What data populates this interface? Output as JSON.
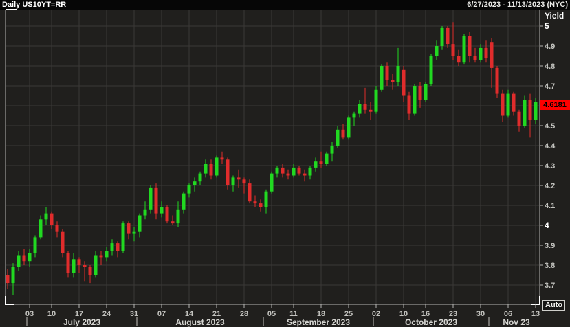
{
  "title_bar": {
    "title": "Daily US10YT=RR",
    "date_range": "6/27/2023 - 11/13/2023 (NYC)"
  },
  "y_axis": {
    "label": "Yield",
    "ticks": [
      "5",
      "4.9",
      "4.8",
      "4.7",
      "4.6",
      "4.5",
      "4.4",
      "4.3",
      "4.2",
      "4.1",
      "4",
      "3.9",
      "3.8",
      "3.7"
    ],
    "bold_ticks": [
      "5",
      "4"
    ],
    "current_price_label": "4.6181"
  },
  "x_axis": {
    "week_ticks": [
      {
        "label": "03",
        "i": 4
      },
      {
        "label": "10",
        "i": 8
      },
      {
        "label": "17",
        "i": 13
      },
      {
        "label": "24",
        "i": 18
      },
      {
        "label": "31",
        "i": 23
      },
      {
        "label": "07",
        "i": 28
      },
      {
        "label": "14",
        "i": 33
      },
      {
        "label": "21",
        "i": 38
      },
      {
        "label": "28",
        "i": 43
      },
      {
        "label": "05",
        "i": 48
      },
      {
        "label": "11",
        "i": 52
      },
      {
        "label": "18",
        "i": 57
      },
      {
        "label": "25",
        "i": 62
      },
      {
        "label": "02",
        "i": 67
      },
      {
        "label": "10",
        "i": 72
      },
      {
        "label": "16",
        "i": 76
      },
      {
        "label": "23",
        "i": 81
      },
      {
        "label": "30",
        "i": 86
      },
      {
        "label": "06",
        "i": 91
      },
      {
        "label": "13",
        "i": 96
      }
    ],
    "month_labels": [
      {
        "label": "July 2023",
        "i": 13.5
      },
      {
        "label": "August 2023",
        "i": 35
      },
      {
        "label": "September 2023",
        "i": 56.5
      },
      {
        "label": "October 2023",
        "i": 77
      },
      {
        "label": "Nov 23",
        "i": 92.5
      }
    ],
    "month_separators": [
      3.5,
      23.5,
      46.5,
      66.5,
      87.5
    ]
  },
  "auto_button": "Auto",
  "colors": {
    "background": "#201f1d",
    "titlebar_bg": "#060606",
    "grid": "#3a3936",
    "axis_frame": "#b6b6b2",
    "corner_accent": "#ffffff",
    "tick_text": "#c3c3bf",
    "bold_tick_text": "#ffffff",
    "month_text": "#d6d6d2",
    "candle_up": "#21d921",
    "candle_down": "#e02c2c",
    "price_label_bg": "#fe0000",
    "price_label_text": "#000000"
  },
  "chart_data": {
    "type": "candlestick",
    "title": "Daily US10YT=RR",
    "ylabel": "Yield",
    "ylim": [
      3.6,
      5.09
    ],
    "grid": true,
    "last_price": 4.6181,
    "dates": [
      "2023-06-27",
      "2023-06-28",
      "2023-06-29",
      "2023-06-30",
      "2023-07-03",
      "2023-07-05",
      "2023-07-06",
      "2023-07-07",
      "2023-07-10",
      "2023-07-11",
      "2023-07-12",
      "2023-07-13",
      "2023-07-14",
      "2023-07-17",
      "2023-07-18",
      "2023-07-19",
      "2023-07-20",
      "2023-07-21",
      "2023-07-24",
      "2023-07-25",
      "2023-07-26",
      "2023-07-27",
      "2023-07-28",
      "2023-07-31",
      "2023-08-01",
      "2023-08-02",
      "2023-08-03",
      "2023-08-04",
      "2023-08-07",
      "2023-08-08",
      "2023-08-09",
      "2023-08-10",
      "2023-08-11",
      "2023-08-14",
      "2023-08-15",
      "2023-08-16",
      "2023-08-17",
      "2023-08-18",
      "2023-08-21",
      "2023-08-22",
      "2023-08-23",
      "2023-08-24",
      "2023-08-25",
      "2023-08-28",
      "2023-08-29",
      "2023-08-30",
      "2023-08-31",
      "2023-09-01",
      "2023-09-05",
      "2023-09-06",
      "2023-09-07",
      "2023-09-08",
      "2023-09-11",
      "2023-09-12",
      "2023-09-13",
      "2023-09-14",
      "2023-09-15",
      "2023-09-18",
      "2023-09-19",
      "2023-09-20",
      "2023-09-21",
      "2023-09-22",
      "2023-09-25",
      "2023-09-26",
      "2023-09-27",
      "2023-09-28",
      "2023-09-29",
      "2023-10-02",
      "2023-10-03",
      "2023-10-04",
      "2023-10-05",
      "2023-10-06",
      "2023-10-10",
      "2023-10-11",
      "2023-10-12",
      "2023-10-13",
      "2023-10-16",
      "2023-10-17",
      "2023-10-18",
      "2023-10-19",
      "2023-10-20",
      "2023-10-23",
      "2023-10-24",
      "2023-10-25",
      "2023-10-26",
      "2023-10-27",
      "2023-10-30",
      "2023-10-31",
      "2023-11-01",
      "2023-11-02",
      "2023-11-03",
      "2023-11-06",
      "2023-11-07",
      "2023-11-08",
      "2023-11-09",
      "2023-11-10",
      "2023-11-13"
    ],
    "ohlc": [
      [
        3.75,
        3.78,
        3.68,
        3.71
      ],
      [
        3.71,
        3.81,
        3.65,
        3.79
      ],
      [
        3.79,
        3.87,
        3.77,
        3.85
      ],
      [
        3.85,
        3.88,
        3.8,
        3.82
      ],
      [
        3.82,
        3.88,
        3.79,
        3.86
      ],
      [
        3.86,
        3.95,
        3.84,
        3.94
      ],
      [
        3.94,
        4.05,
        3.93,
        4.03
      ],
      [
        4.03,
        4.09,
        4.0,
        4.06
      ],
      [
        4.06,
        4.07,
        3.98,
        4.0
      ],
      [
        4.0,
        4.02,
        3.94,
        3.97
      ],
      [
        3.97,
        3.98,
        3.84,
        3.86
      ],
      [
        3.86,
        3.87,
        3.74,
        3.76
      ],
      [
        3.76,
        3.86,
        3.74,
        3.83
      ],
      [
        3.83,
        3.84,
        3.76,
        3.8
      ],
      [
        3.8,
        3.82,
        3.72,
        3.79
      ],
      [
        3.79,
        3.8,
        3.71,
        3.75
      ],
      [
        3.75,
        3.87,
        3.74,
        3.85
      ],
      [
        3.85,
        3.87,
        3.8,
        3.84
      ],
      [
        3.84,
        3.89,
        3.82,
        3.87
      ],
      [
        3.87,
        3.93,
        3.85,
        3.91
      ],
      [
        3.91,
        3.92,
        3.84,
        3.87
      ],
      [
        3.87,
        4.02,
        3.86,
        4.01
      ],
      [
        4.01,
        4.02,
        3.93,
        3.96
      ],
      [
        3.96,
        3.99,
        3.92,
        3.97
      ],
      [
        3.97,
        4.06,
        3.94,
        4.05
      ],
      [
        4.05,
        4.12,
        4.03,
        4.08
      ],
      [
        4.08,
        4.2,
        4.06,
        4.19
      ],
      [
        4.19,
        4.21,
        4.03,
        4.06
      ],
      [
        4.06,
        4.12,
        4.04,
        4.09
      ],
      [
        4.09,
        4.1,
        4.01,
        4.02
      ],
      [
        4.02,
        4.05,
        4.0,
        4.01
      ],
      [
        4.01,
        4.12,
        3.99,
        4.08
      ],
      [
        4.08,
        4.17,
        4.06,
        4.16
      ],
      [
        4.16,
        4.21,
        4.14,
        4.2
      ],
      [
        4.2,
        4.24,
        4.17,
        4.22
      ],
      [
        4.22,
        4.27,
        4.2,
        4.26
      ],
      [
        4.26,
        4.33,
        4.24,
        4.31
      ],
      [
        4.31,
        4.33,
        4.23,
        4.25
      ],
      [
        4.25,
        4.35,
        4.24,
        4.34
      ],
      [
        4.34,
        4.37,
        4.31,
        4.33
      ],
      [
        4.33,
        4.34,
        4.18,
        4.2
      ],
      [
        4.2,
        4.25,
        4.17,
        4.24
      ],
      [
        4.24,
        4.28,
        4.19,
        4.23
      ],
      [
        4.23,
        4.24,
        4.16,
        4.21
      ],
      [
        4.21,
        4.23,
        4.11,
        4.12
      ],
      [
        4.12,
        4.15,
        4.09,
        4.11
      ],
      [
        4.11,
        4.13,
        4.07,
        4.09
      ],
      [
        4.09,
        4.18,
        4.06,
        4.17
      ],
      [
        4.17,
        4.27,
        4.16,
        4.26
      ],
      [
        4.26,
        4.3,
        4.24,
        4.29
      ],
      [
        4.29,
        4.31,
        4.24,
        4.26
      ],
      [
        4.26,
        4.28,
        4.23,
        4.25
      ],
      [
        4.25,
        4.31,
        4.24,
        4.29
      ],
      [
        4.29,
        4.3,
        4.25,
        4.26
      ],
      [
        4.26,
        4.28,
        4.22,
        4.25
      ],
      [
        4.25,
        4.3,
        4.23,
        4.29
      ],
      [
        4.29,
        4.34,
        4.27,
        4.32
      ],
      [
        4.32,
        4.37,
        4.29,
        4.31
      ],
      [
        4.31,
        4.37,
        4.3,
        4.36
      ],
      [
        4.36,
        4.42,
        4.32,
        4.4
      ],
      [
        4.4,
        4.5,
        4.39,
        4.48
      ],
      [
        4.48,
        4.51,
        4.43,
        4.44
      ],
      [
        4.44,
        4.55,
        4.43,
        4.54
      ],
      [
        4.54,
        4.57,
        4.5,
        4.56
      ],
      [
        4.56,
        4.63,
        4.54,
        4.61
      ],
      [
        4.61,
        4.69,
        4.56,
        4.58
      ],
      [
        4.58,
        4.62,
        4.53,
        4.57
      ],
      [
        4.57,
        4.7,
        4.56,
        4.68
      ],
      [
        4.68,
        4.81,
        4.67,
        4.8
      ],
      [
        4.8,
        4.82,
        4.7,
        4.73
      ],
      [
        4.73,
        4.76,
        4.68,
        4.72
      ],
      [
        4.72,
        4.89,
        4.7,
        4.8
      ],
      [
        4.78,
        4.8,
        4.62,
        4.65
      ],
      [
        4.65,
        4.67,
        4.53,
        4.56
      ],
      [
        4.56,
        4.71,
        4.55,
        4.7
      ],
      [
        4.7,
        4.72,
        4.59,
        4.63
      ],
      [
        4.63,
        4.72,
        4.62,
        4.71
      ],
      [
        4.71,
        4.86,
        4.7,
        4.85
      ],
      [
        4.85,
        4.93,
        4.83,
        4.9
      ],
      [
        4.9,
        5.0,
        4.88,
        4.99
      ],
      [
        4.99,
        5.0,
        4.89,
        4.91
      ],
      [
        4.91,
        5.02,
        4.83,
        4.85
      ],
      [
        4.85,
        4.88,
        4.8,
        4.82
      ],
      [
        4.82,
        4.96,
        4.81,
        4.95
      ],
      [
        4.95,
        4.97,
        4.82,
        4.85
      ],
      [
        4.85,
        4.89,
        4.82,
        4.83
      ],
      [
        4.83,
        4.91,
        4.82,
        4.89
      ],
      [
        4.89,
        4.93,
        4.82,
        4.84
      ],
      [
        4.92,
        4.94,
        4.69,
        4.79
      ],
      [
        4.79,
        4.8,
        4.64,
        4.66
      ],
      [
        4.66,
        4.68,
        4.52,
        4.55
      ],
      [
        4.55,
        4.68,
        4.54,
        4.66
      ],
      [
        4.66,
        4.67,
        4.55,
        4.57
      ],
      [
        4.57,
        4.58,
        4.47,
        4.5
      ],
      [
        4.5,
        4.65,
        4.49,
        4.63
      ],
      [
        4.63,
        4.66,
        4.44,
        4.53
      ],
      [
        4.53,
        4.64,
        4.51,
        4.618
      ]
    ]
  }
}
